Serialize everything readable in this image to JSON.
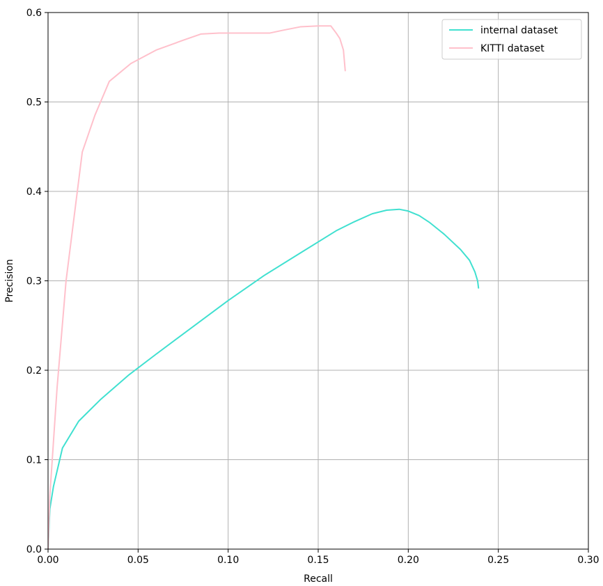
{
  "chart_data": {
    "type": "line",
    "title": "",
    "xlabel": "Recall",
    "ylabel": "Precision",
    "xlim": [
      0,
      0.3
    ],
    "ylim": [
      0,
      0.6
    ],
    "grid": true,
    "legend_position": "top-right",
    "xticks": [
      0.0,
      0.05,
      0.1,
      0.15,
      0.2,
      0.25,
      0.3
    ],
    "xtick_labels": [
      "0.00",
      "0.05",
      "0.10",
      "0.15",
      "0.20",
      "0.25",
      "0.30"
    ],
    "yticks": [
      0.0,
      0.1,
      0.2,
      0.3,
      0.4,
      0.5,
      0.6
    ],
    "ytick_labels": [
      "0.0",
      "0.1",
      "0.2",
      "0.3",
      "0.4",
      "0.5",
      "0.6"
    ],
    "series": [
      {
        "name": "internal dataset",
        "color": "#40e0d0",
        "x": [
          0.0,
          0.001,
          0.003,
          0.008,
          0.017,
          0.029,
          0.045,
          0.06,
          0.08,
          0.1,
          0.12,
          0.14,
          0.16,
          0.17,
          0.18,
          0.188,
          0.195,
          0.2,
          0.206,
          0.212,
          0.22,
          0.229,
          0.234,
          0.237,
          0.2385,
          0.239
        ],
        "y": [
          0.0,
          0.045,
          0.07,
          0.113,
          0.143,
          0.167,
          0.195,
          0.218,
          0.248,
          0.278,
          0.306,
          0.331,
          0.356,
          0.366,
          0.375,
          0.379,
          0.38,
          0.378,
          0.373,
          0.365,
          0.352,
          0.335,
          0.323,
          0.31,
          0.3,
          0.292
        ]
      },
      {
        "name": "KITTI dataset",
        "color": "#ffc0cb",
        "x": [
          0.0,
          0.001,
          0.005,
          0.01,
          0.019,
          0.026,
          0.034,
          0.046,
          0.06,
          0.075,
          0.085,
          0.095,
          0.11,
          0.123,
          0.13,
          0.14,
          0.15,
          0.157,
          0.16,
          0.162,
          0.164,
          0.165
        ],
        "y": [
          0.0,
          0.06,
          0.18,
          0.3,
          0.444,
          0.485,
          0.523,
          0.543,
          0.558,
          0.569,
          0.576,
          0.577,
          0.577,
          0.577,
          0.58,
          0.584,
          0.585,
          0.585,
          0.577,
          0.571,
          0.558,
          0.535
        ]
      }
    ]
  }
}
